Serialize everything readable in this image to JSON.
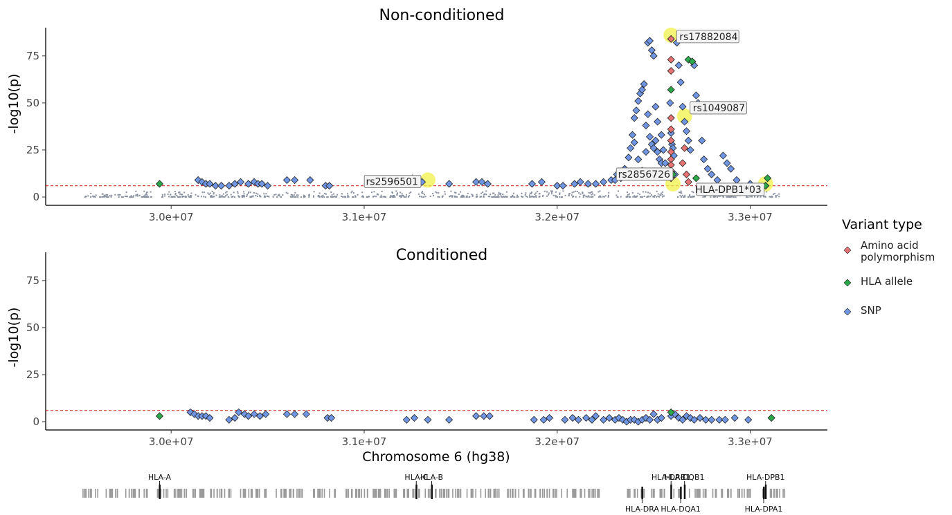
{
  "chart_data": [
    {
      "type": "scatter",
      "title": "Non-conditioned",
      "xlabel": "",
      "ylabel": "-log10(p)",
      "xlim": [
        29350000,
        33400000
      ],
      "ylim": [
        0,
        90
      ],
      "x_ticks": [
        30000000,
        31000000,
        32000000,
        33000000
      ],
      "x_tick_labels": [
        "3.0e+07",
        "3.1e+07",
        "3.2e+07",
        "3.3e+07"
      ],
      "y_ticks": [
        0,
        25,
        50,
        75
      ],
      "y_tick_labels": [
        "0",
        "25",
        "50",
        "75"
      ],
      "threshold": 6,
      "grid": false,
      "highlighted": [
        {
          "label": "rs17882084",
          "x": 32590000,
          "y": 86
        },
        {
          "label": "rs1049087",
          "x": 32660000,
          "y": 43
        },
        {
          "label": "rs2596501",
          "x": 31330000,
          "y": 9
        },
        {
          "label": "rs2856726",
          "x": 32600000,
          "y": 7
        },
        {
          "label": "HLA-DPB1*03",
          "x": 33080000,
          "y": 7
        }
      ],
      "series": [
        {
          "name": "SNP",
          "color": "#6f95e3",
          "points": [
            [
              30140000,
              9
            ],
            [
              30160000,
              8
            ],
            [
              30180000,
              7
            ],
            [
              30200000,
              7
            ],
            [
              30230000,
              6
            ],
            [
              30260000,
              6
            ],
            [
              30300000,
              6
            ],
            [
              30330000,
              7
            ],
            [
              30360000,
              8
            ],
            [
              30400000,
              7
            ],
            [
              30430000,
              8
            ],
            [
              30450000,
              7
            ],
            [
              30470000,
              7
            ],
            [
              30500000,
              6
            ],
            [
              30600000,
              9
            ],
            [
              30640000,
              9
            ],
            [
              30720000,
              9
            ],
            [
              30800000,
              6
            ],
            [
              30820000,
              6
            ],
            [
              31200000,
              8
            ],
            [
              31300000,
              8
            ],
            [
              31440000,
              7
            ],
            [
              31580000,
              8
            ],
            [
              31610000,
              8
            ],
            [
              31640000,
              7
            ],
            [
              31870000,
              7
            ],
            [
              31920000,
              8
            ],
            [
              32000000,
              6
            ],
            [
              32030000,
              6
            ],
            [
              32090000,
              7
            ],
            [
              32120000,
              8
            ],
            [
              32160000,
              7
            ],
            [
              32200000,
              7
            ],
            [
              32240000,
              8
            ],
            [
              32280000,
              9
            ],
            [
              32300000,
              9
            ],
            [
              32310000,
              12
            ],
            [
              32330000,
              10
            ],
            [
              32350000,
              15
            ],
            [
              32370000,
              21
            ],
            [
              32380000,
              26
            ],
            [
              32390000,
              33
            ],
            [
              32400000,
              42
            ],
            [
              32410000,
              46
            ],
            [
              32420000,
              51
            ],
            [
              32430000,
              55
            ],
            [
              32440000,
              57
            ],
            [
              32450000,
              60
            ],
            [
              32460000,
              38
            ],
            [
              32470000,
              44
            ],
            [
              32480000,
              32
            ],
            [
              32490000,
              28
            ],
            [
              32500000,
              26
            ],
            [
              32510000,
              30
            ],
            [
              32520000,
              24
            ],
            [
              32530000,
              20
            ],
            [
              32540000,
              18
            ],
            [
              32400000,
              29
            ],
            [
              32420000,
              20
            ],
            [
              32440000,
              14
            ],
            [
              32460000,
              24
            ],
            [
              32470000,
              82
            ],
            [
              32480000,
              83
            ],
            [
              32490000,
              78
            ],
            [
              32500000,
              75
            ],
            [
              32510000,
              48
            ],
            [
              32520000,
              40
            ],
            [
              32540000,
              33
            ],
            [
              32550000,
              25
            ],
            [
              32560000,
              18
            ],
            [
              32570000,
              11
            ],
            [
              32585000,
              50
            ],
            [
              32590000,
              34
            ],
            [
              32595000,
              28
            ],
            [
              32600000,
              26
            ],
            [
              32605000,
              22
            ],
            [
              32610000,
              12
            ],
            [
              32620000,
              82
            ],
            [
              32630000,
              70
            ],
            [
              32640000,
              61
            ],
            [
              32650000,
              48
            ],
            [
              32660000,
              40
            ],
            [
              32670000,
              35
            ],
            [
              32680000,
              30
            ],
            [
              32690000,
              25
            ],
            [
              32700000,
              72
            ],
            [
              32710000,
              70
            ],
            [
              32720000,
              54
            ],
            [
              32730000,
              50
            ],
            [
              32740000,
              46
            ],
            [
              32750000,
              30
            ],
            [
              32760000,
              20
            ],
            [
              32780000,
              15
            ],
            [
              32800000,
              12
            ],
            [
              32830000,
              9
            ],
            [
              32860000,
              22
            ],
            [
              32880000,
              18
            ],
            [
              32900000,
              15
            ],
            [
              32930000,
              9
            ],
            [
              33000000,
              7
            ],
            [
              33080000,
              6
            ]
          ]
        },
        {
          "name": "Amino acid polymorphism",
          "color": "#e57373",
          "points": [
            [
              32590000,
              84
            ],
            [
              32590000,
              73
            ],
            [
              32590000,
              67
            ],
            [
              32590000,
              42
            ],
            [
              32590000,
              36
            ],
            [
              32590000,
              30
            ],
            [
              32590000,
              24
            ],
            [
              32590000,
              20
            ],
            [
              32590000,
              17
            ],
            [
              32590000,
              14
            ],
            [
              32590000,
              10
            ],
            [
              32660000,
              26
            ],
            [
              32650000,
              18
            ],
            [
              32670000,
              12
            ],
            [
              32680000,
              8
            ]
          ]
        },
        {
          "name": "HLA allele",
          "color": "#2ba84a",
          "points": [
            [
              29940000,
              7
            ],
            [
              31250000,
              10
            ],
            [
              32590000,
              57
            ],
            [
              32600000,
              12
            ],
            [
              32680000,
              73
            ],
            [
              32700000,
              72
            ],
            [
              32720000,
              10
            ],
            [
              33090000,
              10
            ],
            [
              33080000,
              6
            ]
          ]
        }
      ]
    },
    {
      "type": "scatter",
      "title": "Conditioned",
      "xlabel": "Chromosome 6 (hg38)",
      "ylabel": "-log10(p)",
      "xlim": [
        29350000,
        33400000
      ],
      "ylim": [
        0,
        90
      ],
      "x_ticks": [
        30000000,
        31000000,
        32000000,
        33000000
      ],
      "x_tick_labels": [
        "3.0e+07",
        "3.1e+07",
        "3.2e+07",
        "3.3e+07"
      ],
      "y_ticks": [
        0,
        25,
        50,
        75
      ],
      "y_tick_labels": [
        "0",
        "25",
        "50",
        "75"
      ],
      "threshold": 6,
      "grid": false,
      "series": [
        {
          "name": "SNP",
          "color": "#6f95e3",
          "points": [
            [
              30100000,
              5
            ],
            [
              30120000,
              4
            ],
            [
              30140000,
              3
            ],
            [
              30160000,
              3
            ],
            [
              30180000,
              3
            ],
            [
              30200000,
              2
            ],
            [
              30300000,
              1
            ],
            [
              30330000,
              2
            ],
            [
              30350000,
              5
            ],
            [
              30380000,
              4
            ],
            [
              30400000,
              3
            ],
            [
              30430000,
              4
            ],
            [
              30460000,
              3
            ],
            [
              30490000,
              4
            ],
            [
              30600000,
              4
            ],
            [
              30640000,
              4
            ],
            [
              30700000,
              4
            ],
            [
              30810000,
              2
            ],
            [
              30830000,
              2
            ],
            [
              31220000,
              1
            ],
            [
              31260000,
              2
            ],
            [
              31330000,
              1
            ],
            [
              31440000,
              1
            ],
            [
              31580000,
              3
            ],
            [
              31620000,
              3
            ],
            [
              31650000,
              3
            ],
            [
              31880000,
              1
            ],
            [
              31930000,
              1
            ],
            [
              31960000,
              2
            ],
            [
              32040000,
              1
            ],
            [
              32080000,
              2
            ],
            [
              32110000,
              1
            ],
            [
              32150000,
              2
            ],
            [
              32180000,
              1
            ],
            [
              32200000,
              3
            ],
            [
              32240000,
              1
            ],
            [
              32270000,
              2
            ],
            [
              32300000,
              1
            ],
            [
              32320000,
              2
            ],
            [
              32340000,
              1
            ],
            [
              32360000,
              0
            ],
            [
              32380000,
              1
            ],
            [
              32400000,
              1
            ],
            [
              32420000,
              0
            ],
            [
              32440000,
              1
            ],
            [
              32460000,
              2
            ],
            [
              32480000,
              1
            ],
            [
              32500000,
              4
            ],
            [
              32520000,
              1
            ],
            [
              32540000,
              2
            ],
            [
              32590000,
              3
            ],
            [
              32610000,
              4
            ],
            [
              32630000,
              2
            ],
            [
              32650000,
              1
            ],
            [
              32670000,
              3
            ],
            [
              32690000,
              2
            ],
            [
              32710000,
              1
            ],
            [
              32740000,
              2
            ],
            [
              32770000,
              1
            ],
            [
              32800000,
              1
            ],
            [
              32840000,
              1
            ],
            [
              32870000,
              1
            ],
            [
              32920000,
              2
            ],
            [
              32990000,
              1
            ]
          ]
        },
        {
          "name": "HLA allele",
          "color": "#2ba84a",
          "points": [
            [
              29940000,
              3
            ],
            [
              32590000,
              5
            ],
            [
              33110000,
              2
            ]
          ]
        }
      ]
    }
  ],
  "legend": {
    "title": "Variant type",
    "items": [
      {
        "lines": [
          "Amino acid",
          "polymorphism"
        ],
        "color": "#e57373"
      },
      {
        "lines": [
          "HLA allele"
        ],
        "color": "#2ba84a"
      },
      {
        "lines": [
          "SNP"
        ],
        "color": "#6f95e3"
      }
    ]
  },
  "gene_track": {
    "labels_top": [
      {
        "label": "HLA-A",
        "x": 29940000
      },
      {
        "label": "HLA-C",
        "x": 31270000
      },
      {
        "label": "HLA-B",
        "x": 31350000
      },
      {
        "label": "HLA-DRB1",
        "x": 32590000
      },
      {
        "label": "HLA-DQB1",
        "x": 32660000
      },
      {
        "label": "HLA-DPB1",
        "x": 33080000
      }
    ],
    "labels_bottom": [
      {
        "label": "HLA-DRA",
        "x": 32440000
      },
      {
        "label": "HLA-DQA1",
        "x": 32640000
      },
      {
        "label": "HLA-DPA1",
        "x": 33070000
      }
    ]
  }
}
